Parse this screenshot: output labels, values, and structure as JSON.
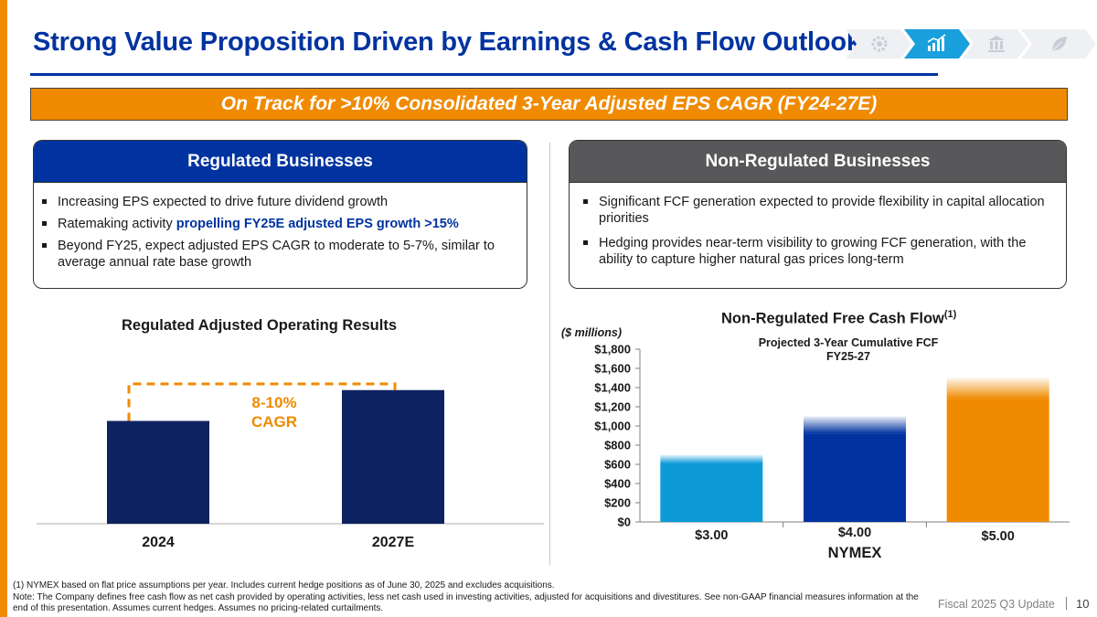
{
  "colors": {
    "brand_blue": "#0033a0",
    "navy": "#0d2260",
    "orange": "#f08a00",
    "light_blue": "#0d9bd8",
    "gray_header": "#58585a"
  },
  "header": {
    "title": "Strong Value Proposition Driven by Earnings & Cash Flow Outlook",
    "nav_steps": [
      {
        "icon": "gear-icon",
        "active": false
      },
      {
        "icon": "growth-chart-icon",
        "active": true
      },
      {
        "icon": "institution-icon",
        "active": false
      },
      {
        "icon": "leaf-icon",
        "active": false
      }
    ]
  },
  "banner": {
    "text": "On Track for >10% Consolidated 3-Year Adjusted EPS CAGR (FY24-27E)"
  },
  "regulated": {
    "heading": "Regulated Businesses",
    "bullets": [
      {
        "text": "Increasing EPS expected to drive future dividend growth"
      },
      {
        "text_prefix": "Ratemaking activity ",
        "highlight": "propelling FY25E adjusted EPS growth >15%"
      },
      {
        "text": "Beyond FY25, expect adjusted EPS CAGR to moderate to 5-7%, similar to average annual rate base growth"
      }
    ]
  },
  "nonregulated": {
    "heading": "Non-Regulated Businesses",
    "bullets": [
      {
        "text": "Significant FCF generation expected to provide flexibility in capital allocation priorities"
      },
      {
        "text": "Hedging provides near-term visibility to growing FCF generation, with the ability to capture higher natural gas prices long-term"
      }
    ]
  },
  "chart_data": [
    {
      "type": "bar",
      "title": "Regulated Adjusted Operating Results",
      "categories": [
        "2024",
        "2027E"
      ],
      "values": [
        1.0,
        1.3
      ],
      "annotation": {
        "line1": "8-10%",
        "line2": "CAGR"
      },
      "ylim": [
        0,
        1.6
      ],
      "note": "relative values, no axis shown"
    },
    {
      "type": "bar",
      "title": "Non-Regulated Free Cash Flow",
      "title_superscript": "(1)",
      "ylabel": "($ millions)",
      "subtitle_line1": "Projected 3-Year Cumulative FCF",
      "subtitle_line2": "FY25-27",
      "xlabel": "NYMEX",
      "categories": [
        "$3.00",
        "$4.00",
        "$5.00"
      ],
      "values": [
        700,
        1100,
        1500
      ],
      "solid_values": [
        610,
        920,
        1280
      ],
      "yticks": [
        0,
        200,
        400,
        600,
        800,
        1000,
        1200,
        1400,
        1600,
        1800
      ],
      "ytick_labels": [
        "$0",
        "$200",
        "$400",
        "$600",
        "$800",
        "$1,000",
        "$1,200",
        "$1,400",
        "$1,600",
        "$1,800"
      ],
      "ylim": [
        0,
        1800
      ],
      "bar_colors": [
        "#0d9bd8",
        "#0033a0",
        "#f08a00"
      ]
    }
  ],
  "footer": {
    "note1": "(1) NYMEX based on flat price assumptions per year. Includes current hedge positions as of June 30, 2025 and excludes acquisitions.",
    "note2": "Note: The Company defines free cash flow as net cash provided by operating activities, less net cash used in investing activities, adjusted for acquisitions and divestitures. See non-GAAP financial measures information at the end of this presentation. Assumes current hedges. Assumes no pricing-related curtailments.",
    "label": "Fiscal 2025 Q3 Update",
    "page": "10"
  }
}
